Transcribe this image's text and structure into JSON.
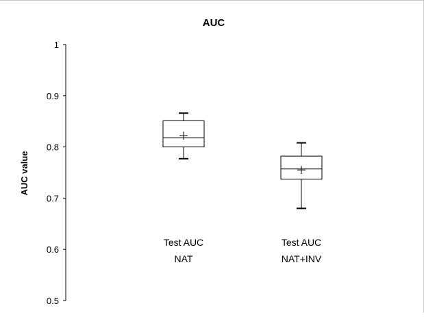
{
  "chart_data": {
    "type": "box",
    "title": "AUC",
    "xlabel": "",
    "ylabel": "AUC value",
    "ylim": [
      0.5,
      1.0
    ],
    "yticks": [
      "0.5",
      "0.6",
      "0.7",
      "0.8",
      "0.9",
      "1"
    ],
    "grid": false,
    "legend": "none",
    "categories": [
      {
        "line1": "Test AUC",
        "line2": "NAT"
      },
      {
        "line1": "Test AUC",
        "line2": "NAT+INV"
      }
    ],
    "boxes": [
      {
        "min": 0.777,
        "q1": 0.8,
        "median": 0.818,
        "mean": 0.822,
        "q3": 0.851,
        "max": 0.866
      },
      {
        "min": 0.68,
        "q1": 0.737,
        "median": 0.757,
        "mean": 0.755,
        "q3": 0.782,
        "max": 0.808
      }
    ]
  }
}
